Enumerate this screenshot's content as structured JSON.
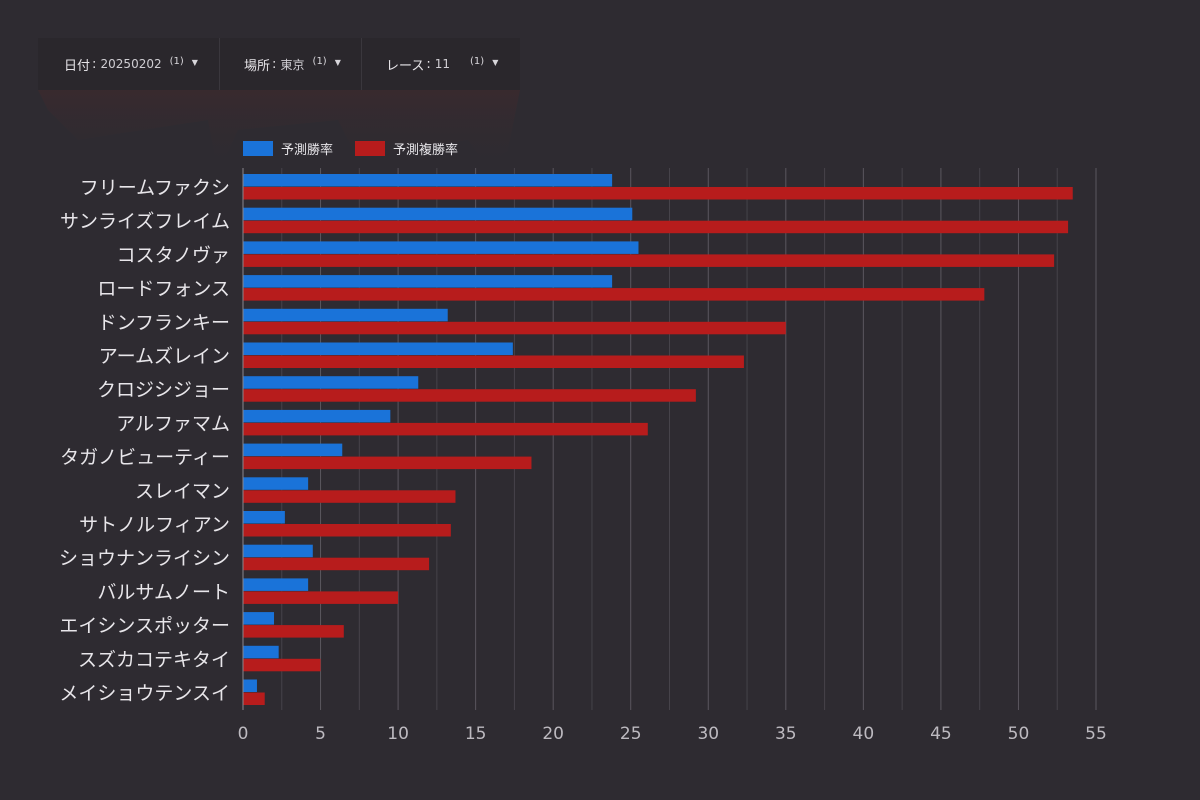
{
  "filters": [
    {
      "label": "日付",
      "value": "20250202",
      "count": "(1)"
    },
    {
      "label": "場所",
      "value": "東京",
      "count": "(1)"
    },
    {
      "label": "レース",
      "value": "11",
      "count": "(1)"
    }
  ],
  "legend": [
    {
      "name": "予測勝率",
      "color": "#1a73d9"
    },
    {
      "name": "予測複勝率",
      "color": "#b71c1c"
    }
  ],
  "chart_data": {
    "type": "bar",
    "orientation": "horizontal",
    "categories": [
      "フリームファクシ",
      "サンライズフレイム",
      "コスタノヴァ",
      "ロードフォンス",
      "ドンフランキー",
      "アームズレイン",
      "クロジシジョー",
      "アルファマム",
      "タガノビューティー",
      "スレイマン",
      "サトノルフィアン",
      "ショウナンライシン",
      "バルサムノート",
      "エイシンスポッター",
      "スズカコテキタイ",
      "メイショウテンスイ"
    ],
    "series": [
      {
        "name": "予測勝率",
        "color": "#1a73d9",
        "values": [
          23.8,
          25.1,
          25.5,
          23.8,
          13.2,
          17.4,
          11.3,
          9.5,
          6.4,
          4.2,
          2.7,
          4.5,
          4.2,
          2.0,
          2.3,
          0.9
        ]
      },
      {
        "name": "予測複勝率",
        "color": "#b71c1c",
        "values": [
          53.5,
          53.2,
          52.3,
          47.8,
          35.0,
          32.3,
          29.2,
          26.1,
          18.6,
          13.7,
          13.4,
          12.0,
          10.0,
          6.5,
          5.0,
          1.4
        ]
      }
    ],
    "xlim": [
      0,
      55
    ],
    "xticks": [
      0,
      5,
      10,
      15,
      20,
      25,
      30,
      35,
      40,
      45,
      50,
      55
    ],
    "grid": true,
    "legend_position": "top-left"
  }
}
